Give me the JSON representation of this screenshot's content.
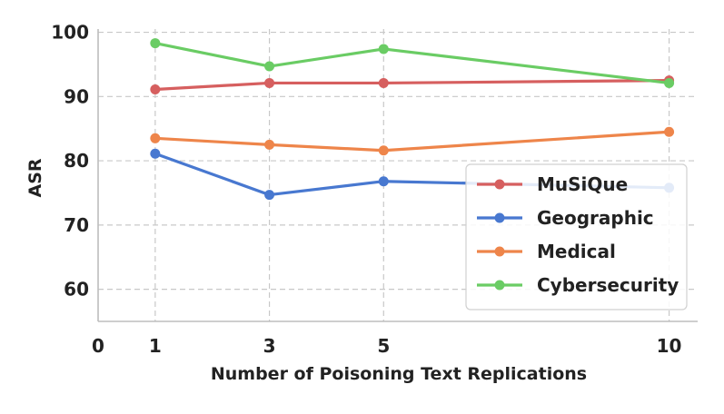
{
  "chart_data": {
    "type": "line",
    "title": "",
    "xlabel": "Number of Poisoning Text Replications",
    "ylabel": "ASR",
    "x": [
      1,
      3,
      5,
      10
    ],
    "xticks": [
      0,
      1,
      3,
      5,
      10
    ],
    "xtick_labels": [
      "0",
      "1",
      "3",
      "5",
      "10"
    ],
    "yticks": [
      60,
      70,
      80,
      90,
      100
    ],
    "ytick_labels": [
      "60",
      "70",
      "80",
      "90",
      "100"
    ],
    "xlim": [
      0,
      10.5
    ],
    "ylim": [
      55,
      100.5
    ],
    "grid": true,
    "legend_position": "lower-right",
    "series": [
      {
        "name": "MuSiQue",
        "color": "#d65f5f",
        "values": [
          91.1,
          92.1,
          92.1,
          92.5
        ]
      },
      {
        "name": "Geographic",
        "color": "#4878d0",
        "values": [
          81.1,
          74.7,
          76.8,
          75.8
        ]
      },
      {
        "name": "Medical",
        "color": "#ee854a",
        "values": [
          83.5,
          82.5,
          81.6,
          84.5
        ]
      },
      {
        "name": "Cybersecurity",
        "color": "#6acc64",
        "values": [
          98.3,
          94.7,
          97.4,
          92.1
        ]
      }
    ]
  }
}
